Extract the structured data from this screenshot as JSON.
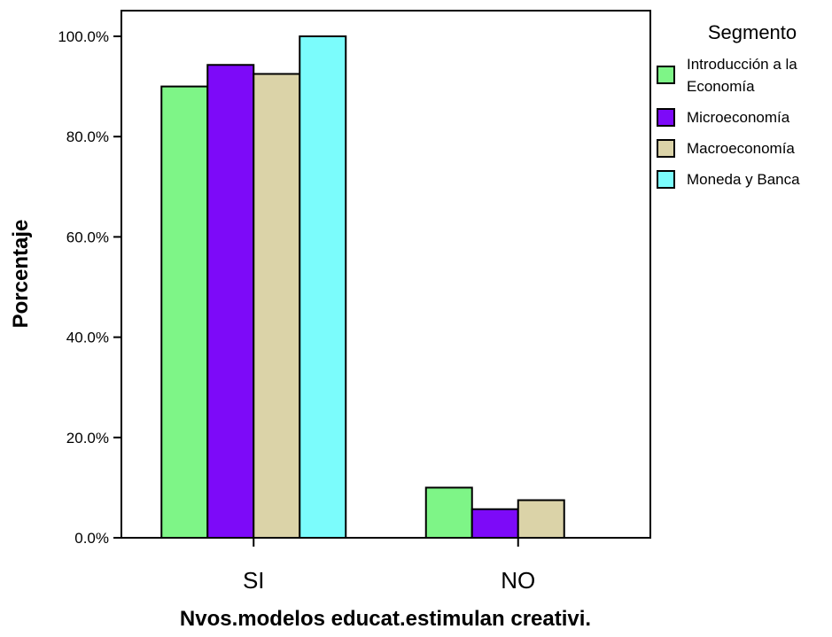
{
  "chart_data": {
    "type": "bar",
    "title": "",
    "xlabel": "Nvos.modelos educat.estimulan creativi.",
    "ylabel": "Porcentaje",
    "categories": [
      "SI",
      "NO"
    ],
    "ylim": [
      0,
      100
    ],
    "yticks": [
      "0.0%",
      "20.0%",
      "40.0%",
      "60.0%",
      "80.0%",
      "100.0%"
    ],
    "grid": false,
    "legend_title": "Segmento",
    "legend_position": "right",
    "series": [
      {
        "name": "Introducción a la Economía",
        "legend_lines": [
          "Introducción a la",
          "Economía"
        ],
        "color": "#7ef587",
        "values": [
          90.0,
          10.0
        ]
      },
      {
        "name": "Microeconomía",
        "legend_lines": [
          "Microeconomía"
        ],
        "color": "#7d0af8",
        "values": [
          94.3,
          5.7
        ]
      },
      {
        "name": "Macroeconomía",
        "legend_lines": [
          "Macroeconomía"
        ],
        "color": "#dbd3a8",
        "values": [
          92.5,
          7.5
        ]
      },
      {
        "name": "Moneda y Banca",
        "legend_lines": [
          "Moneda y Banca"
        ],
        "color": "#7bfcfc",
        "values": [
          100.0,
          0.0
        ]
      }
    ]
  }
}
